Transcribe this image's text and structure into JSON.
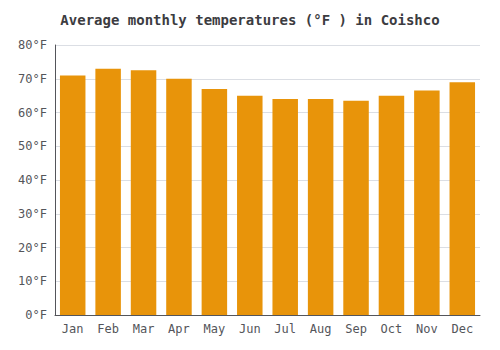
{
  "chart_data": {
    "type": "bar",
    "title": "Average monthly temperatures (°F ) in Coishco",
    "categories": [
      "Jan",
      "Feb",
      "Mar",
      "Apr",
      "May",
      "Jun",
      "Jul",
      "Aug",
      "Sep",
      "Oct",
      "Nov",
      "Dec"
    ],
    "values": [
      71.0,
      73.0,
      72.5,
      70.0,
      67.0,
      65.0,
      64.0,
      64.0,
      63.5,
      65.0,
      66.5,
      69.0
    ],
    "color": "#E8940A",
    "ylim": [
      0,
      80
    ],
    "yticks": [
      {
        "value": 0,
        "label": "0°F"
      },
      {
        "value": 10,
        "label": "10°F"
      },
      {
        "value": 20,
        "label": "20°F"
      },
      {
        "value": 30,
        "label": "30°F"
      },
      {
        "value": 40,
        "label": "40°F"
      },
      {
        "value": 50,
        "label": "50°F"
      },
      {
        "value": 60,
        "label": "60°F"
      },
      {
        "value": 70,
        "label": "70°F"
      },
      {
        "value": 80,
        "label": "80°F"
      }
    ],
    "grid": true
  }
}
